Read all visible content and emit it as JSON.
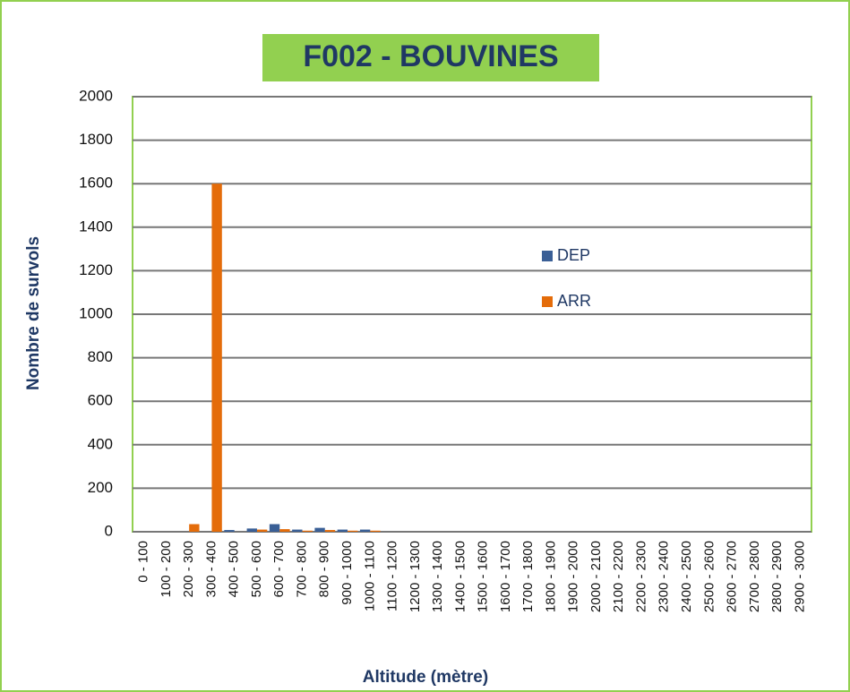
{
  "chart_data": {
    "type": "bar",
    "title": "F002 - BOUVINES",
    "categories": [
      "0 - 100",
      "100 - 200",
      "200 - 300",
      "300 - 400",
      "400 - 500",
      "500 - 600",
      "600 - 700",
      "700 - 800",
      "800 - 900",
      "900 - 1000",
      "1000 - 1100",
      "1100 - 1200",
      "1200 - 1300",
      "1300 - 1400",
      "1400 - 1500",
      "1500 - 1600",
      "1600 - 1700",
      "1700 - 1800",
      "1800 - 1900",
      "1900 - 2000",
      "2000 - 2100",
      "2100 - 2200",
      "2200 - 2300",
      "2300 - 2400",
      "2400 - 2500",
      "2500 - 2600",
      "2600 - 2700",
      "2700 - 2800",
      "2800 - 2900",
      "2900 - 3000"
    ],
    "series": [
      {
        "name": "DEP",
        "color": "#3a5f96",
        "values": [
          0,
          0,
          0,
          0,
          8,
          15,
          35,
          10,
          18,
          10,
          10,
          0,
          0,
          0,
          0,
          0,
          0,
          0,
          0,
          0,
          0,
          0,
          0,
          0,
          0,
          0,
          0,
          0,
          0,
          0
        ]
      },
      {
        "name": "ARR",
        "color": "#e46c0a",
        "values": [
          0,
          0,
          35,
          1600,
          0,
          10,
          12,
          5,
          8,
          5,
          5,
          0,
          0,
          0,
          0,
          0,
          0,
          0,
          0,
          0,
          0,
          0,
          0,
          0,
          0,
          0,
          0,
          0,
          0,
          0
        ]
      }
    ],
    "x_label": "Altitude (mètre)",
    "y_label": "Nombre de survols",
    "ylim": [
      0,
      2000
    ],
    "yticks": [
      0,
      200,
      400,
      600,
      800,
      1000,
      1200,
      1400,
      1600,
      1800,
      2000
    ],
    "grid": true,
    "legend": "right"
  }
}
